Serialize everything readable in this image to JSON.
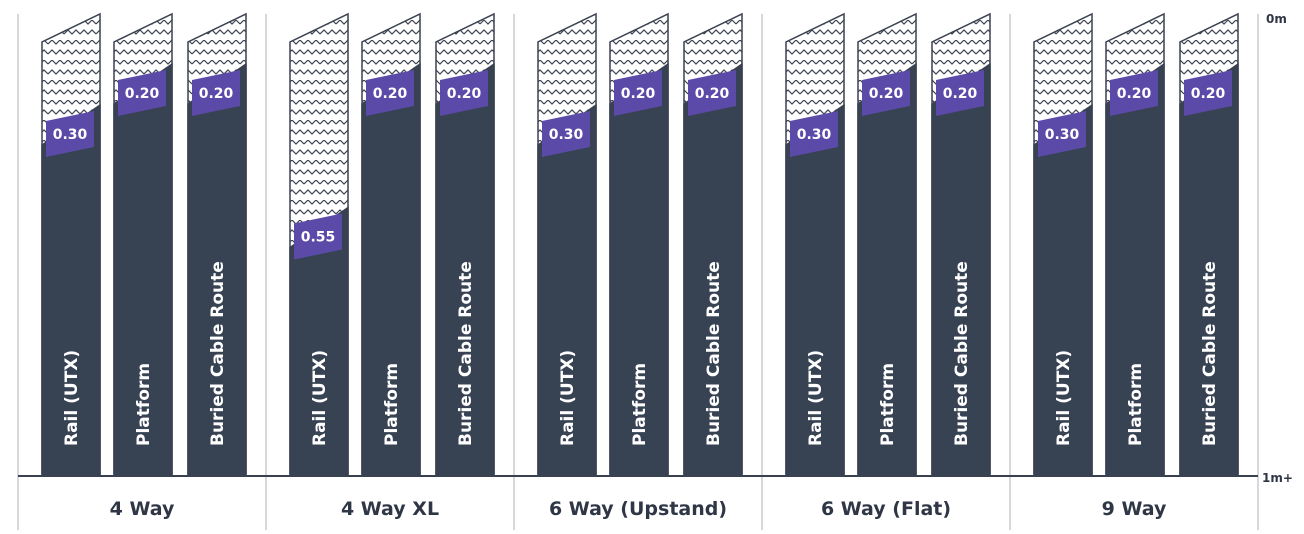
{
  "colors": {
    "column_fill": "#374253",
    "badge": "#5b4aa8",
    "outline": "#3a4150",
    "zigzag": "#3a4150",
    "ground": "#3a4150",
    "divider": "#c8ccd4",
    "text_dark": "#2f3645"
  },
  "axis": {
    "top_label": "0m",
    "bottom_label": "1m+",
    "range_m": [
      0,
      1
    ]
  },
  "chart_data": {
    "type": "bar",
    "unit": "m",
    "groups": [
      {
        "name": "4 Way",
        "columns": [
          {
            "label": "Rail  (UTX)",
            "depth": 0.3,
            "depth_label": "0.30"
          },
          {
            "label": "Platform",
            "depth": 0.2,
            "depth_label": "0.20"
          },
          {
            "label": "Buried Cable Route",
            "depth": 0.2,
            "depth_label": "0.20"
          }
        ]
      },
      {
        "name": "4 Way XL",
        "columns": [
          {
            "label": "Rail  (UTX)",
            "depth": 0.55,
            "depth_label": "0.55"
          },
          {
            "label": "Platform",
            "depth": 0.2,
            "depth_label": "0.20"
          },
          {
            "label": "Buried Cable Route",
            "depth": 0.2,
            "depth_label": "0.20"
          }
        ]
      },
      {
        "name": "6 Way (Upstand)",
        "columns": [
          {
            "label": "Rail  (UTX)",
            "depth": 0.3,
            "depth_label": "0.30"
          },
          {
            "label": "Platform",
            "depth": 0.2,
            "depth_label": "0.20"
          },
          {
            "label": "Buried Cable Route",
            "depth": 0.2,
            "depth_label": "0.20"
          }
        ]
      },
      {
        "name": "6 Way (Flat)",
        "columns": [
          {
            "label": "Rail  (UTX)",
            "depth": 0.3,
            "depth_label": "0.30"
          },
          {
            "label": "Platform",
            "depth": 0.2,
            "depth_label": "0.20"
          },
          {
            "label": "Buried Cable Route",
            "depth": 0.2,
            "depth_label": "0.20"
          }
        ]
      },
      {
        "name": "9 Way",
        "columns": [
          {
            "label": "Rail  (UTX)",
            "depth": 0.3,
            "depth_label": "0.30"
          },
          {
            "label": "Platform",
            "depth": 0.2,
            "depth_label": "0.20"
          },
          {
            "label": "Buried Cable Route",
            "depth": 0.2,
            "depth_label": "0.20"
          }
        ]
      }
    ]
  }
}
